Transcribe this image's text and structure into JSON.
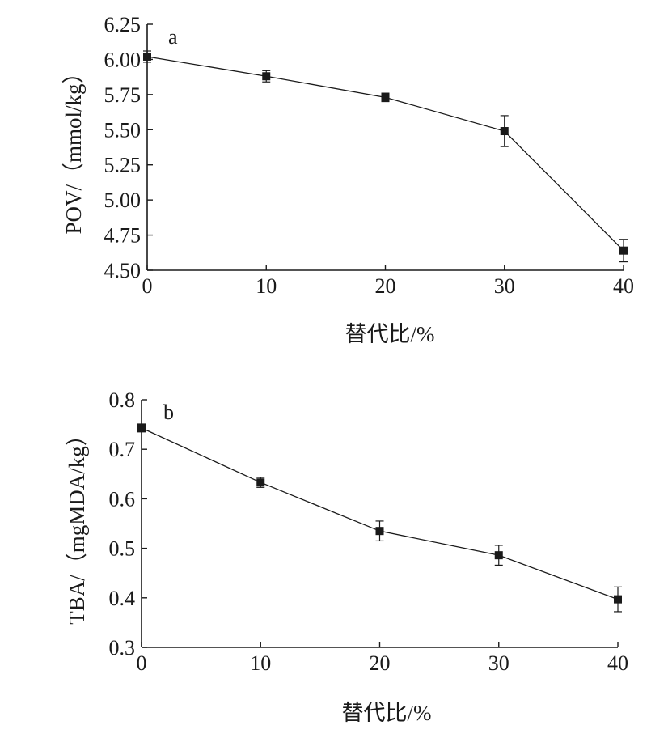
{
  "chart_data": [
    {
      "panel_label": "a",
      "type": "line",
      "xlabel": "替代比/%",
      "ylabel": "POV/（mmol/kg）",
      "xlim": [
        0,
        40
      ],
      "ylim": [
        4.5,
        6.25
      ],
      "xticks": [
        "0",
        "10",
        "20",
        "30",
        "40"
      ],
      "yticks": [
        "4.50",
        "4.75",
        "5.00",
        "5.25",
        "5.50",
        "5.75",
        "6.00",
        "6.25"
      ],
      "grid": false,
      "marker": "square",
      "series": [
        {
          "x": [
            0,
            10,
            20,
            30,
            40
          ],
          "y": [
            6.02,
            5.88,
            5.73,
            5.49,
            4.64
          ],
          "error": [
            0.04,
            0.04,
            0.03,
            0.11,
            0.08
          ]
        }
      ]
    },
    {
      "panel_label": "b",
      "type": "line",
      "xlabel": "替代比/%",
      "ylabel": "TBA/（mgMDA/kg）",
      "xlim": [
        0,
        40
      ],
      "ylim": [
        0.3,
        0.8
      ],
      "xticks": [
        "0",
        "10",
        "20",
        "30",
        "40"
      ],
      "yticks": [
        "0.3",
        "0.4",
        "0.5",
        "0.6",
        "0.7",
        "0.8"
      ],
      "grid": false,
      "marker": "square",
      "series": [
        {
          "x": [
            0,
            10,
            20,
            30,
            40
          ],
          "y": [
            0.743,
            0.633,
            0.535,
            0.486,
            0.397
          ],
          "error": [
            0.008,
            0.01,
            0.02,
            0.02,
            0.025
          ]
        }
      ]
    }
  ]
}
